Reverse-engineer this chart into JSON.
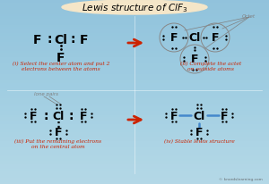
{
  "bg_color_top": "#cce8f0",
  "bg_color_bottom": "#a0cce0",
  "title_bg": "#f5e6c8",
  "title_border": "#c8b060",
  "red_text": "#cc2200",
  "blue_color": "#4488cc",
  "arrow_color": "#cc2200",
  "gray_circle": "#888888",
  "captions": [
    "(i) Select the center atom and put 2\nelectrons between the atoms",
    "(ii) Complete the actet\non outside atoms",
    "(iii) Put the remaining electrons\non the central atom",
    "(iv) Stable lewis structure"
  ],
  "lone_pairs_label": "lone pairs",
  "octet_label": "Octet",
  "watermark": "© knordslearning.com"
}
